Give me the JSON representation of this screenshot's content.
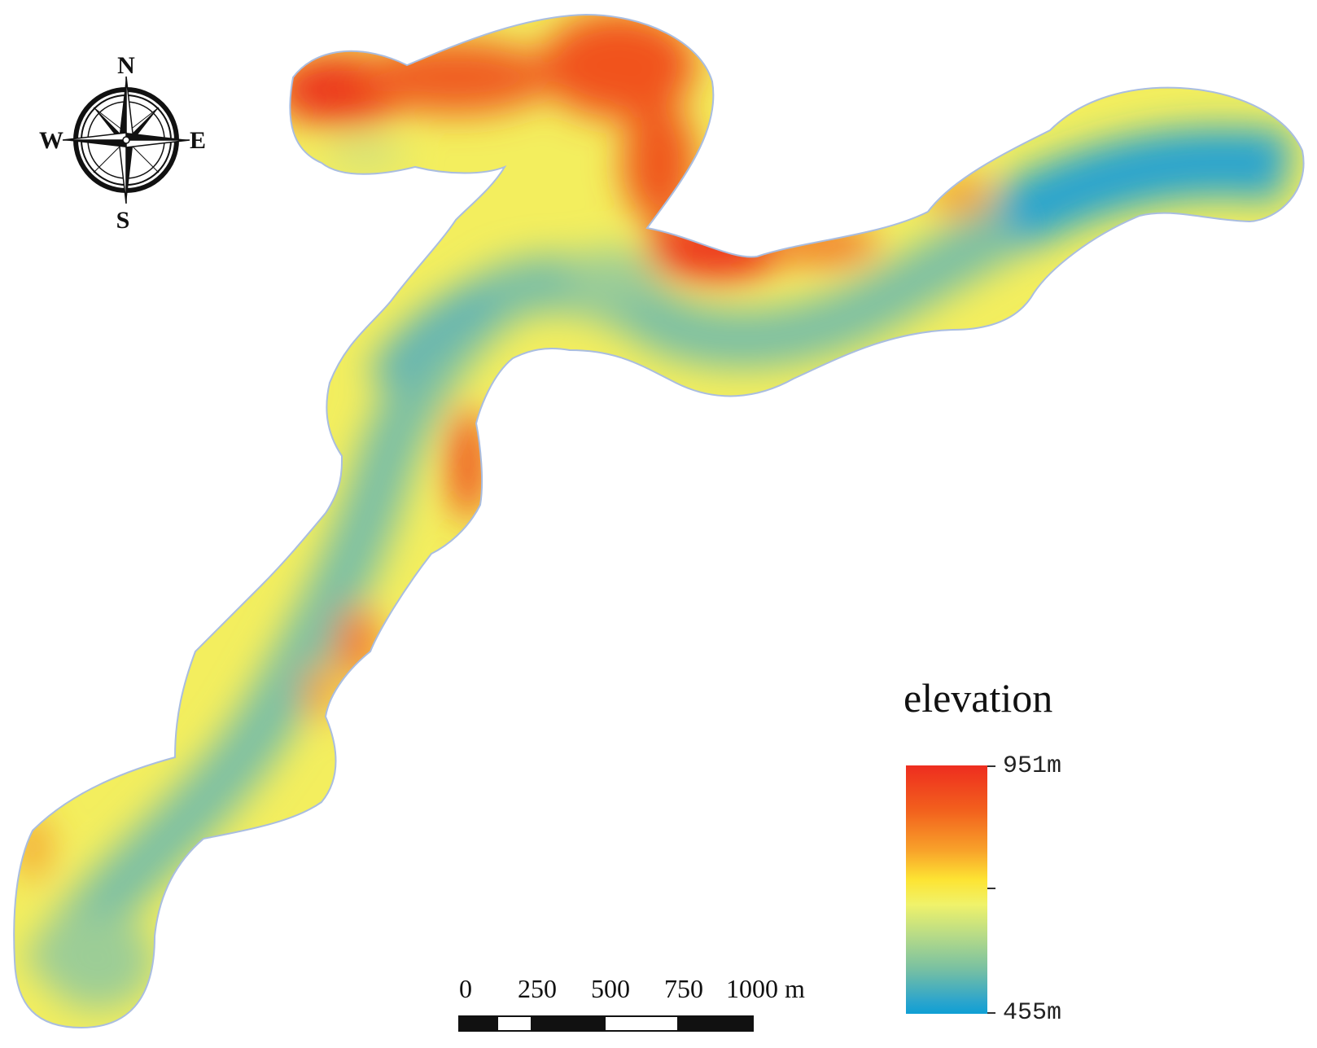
{
  "compass": {
    "north": "N",
    "south": "S",
    "east": "E",
    "west": "W",
    "icon": "compass-rose-icon"
  },
  "legend": {
    "title": "elevation",
    "max_label": "951m",
    "min_label": "455m",
    "max_value": 951,
    "min_value": 455,
    "color_high": "#ee2d1f",
    "color_mid": "#fde433",
    "color_low": "#0e9fd4"
  },
  "scale_bar": {
    "labels": [
      "0",
      "250",
      "500",
      "750",
      "1000 m"
    ],
    "unit": "m"
  }
}
